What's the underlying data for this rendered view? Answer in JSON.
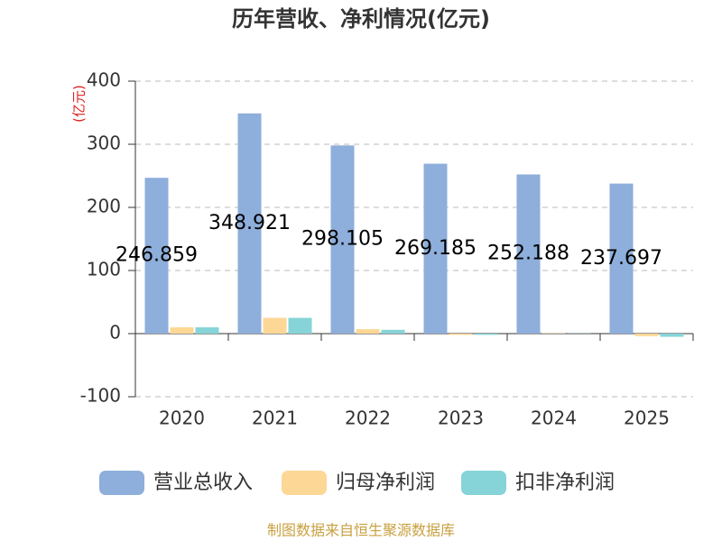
{
  "chart_data": {
    "type": "bar",
    "title": "历年营收、净利情况(亿元)",
    "y_label": "(亿元)",
    "source": "制图数据来自恒生聚源数据库",
    "categories": [
      "2020",
      "2021",
      "2022",
      "2023",
      "2024",
      "2025"
    ],
    "series": [
      {
        "name": "营业总收入",
        "color": "#8eaedb",
        "values": [
          246.859,
          348.921,
          298.105,
          269.185,
          252.188,
          237.697
        ]
      },
      {
        "name": "归母净利润",
        "color": "#fdd795",
        "values": [
          10,
          25,
          7,
          -2,
          0.5,
          -4
        ]
      },
      {
        "name": "扣非净利润",
        "color": "#86d4d8",
        "values": [
          10,
          25,
          6,
          -2,
          0.3,
          -5
        ]
      }
    ],
    "ylim": [
      -100,
      400
    ],
    "yticks": [
      -100,
      0,
      100,
      200,
      300,
      400
    ],
    "grid": true
  }
}
